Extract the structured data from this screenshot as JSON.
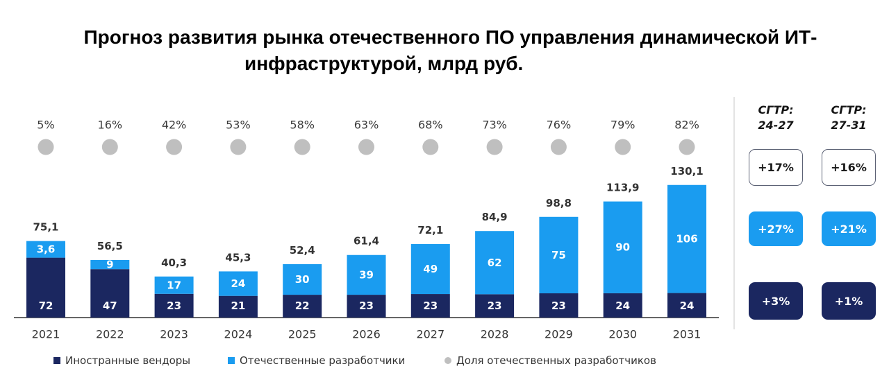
{
  "colors": {
    "foreign": "#1b2760",
    "domestic": "#1a9cf0",
    "share_dot": "#bfbfbf",
    "axis": "#333333",
    "text": "#333333"
  },
  "chart_data": {
    "type": "bar",
    "stacked": true,
    "title": "Прогноз развития рынка отечественного ПО управления динамической ИТ-инфраструктурой, млрд руб.",
    "title_lines": [
      "Прогноз развития рынка отечественного ПО управления динамической ИТ-",
      "инфраструктурой, млрд руб."
    ],
    "xlabel": "",
    "ylabel": "",
    "y_axis_visible": false,
    "grid": false,
    "categories": [
      "2021",
      "2022",
      "2023",
      "2024",
      "2025",
      "2026",
      "2027",
      "2028",
      "2029",
      "2030",
      "2031"
    ],
    "series": [
      {
        "name": "Иностранные вендоры",
        "values": [
          72,
          47,
          23,
          21,
          22,
          23,
          23,
          23,
          23,
          24,
          24
        ]
      },
      {
        "name": "Отечественные разработчики",
        "values": [
          3.6,
          9,
          17,
          24,
          30,
          39,
          49,
          62,
          75,
          90,
          106
        ]
      }
    ],
    "totals": [
      75.1,
      56.5,
      40.3,
      45.3,
      52.4,
      61.4,
      72.1,
      84.9,
      98.8,
      113.9,
      130.1
    ],
    "share_series": {
      "name": "Доля отечественных разработчиков",
      "unit": "%",
      "values": [
        5,
        16,
        42,
        53,
        58,
        63,
        68,
        73,
        76,
        79,
        82
      ]
    },
    "labels": {
      "foreign": [
        "72",
        "47",
        "23",
        "21",
        "22",
        "23",
        "23",
        "23",
        "23",
        "24",
        "24"
      ],
      "domestic": [
        "3,6",
        "9",
        "17",
        "24",
        "30",
        "39",
        "49",
        "62",
        "75",
        "90",
        "106"
      ],
      "totals": [
        "75,1",
        "56,5",
        "40,3",
        "45,3",
        "52,4",
        "61,4",
        "72,1",
        "84,9",
        "98,8",
        "113,9",
        "130,1"
      ],
      "share": [
        "5%",
        "16%",
        "42%",
        "53%",
        "58%",
        "63%",
        "68%",
        "73%",
        "76%",
        "79%",
        "82%"
      ]
    },
    "legend": {
      "placement": "bottom-left",
      "items": [
        {
          "label": "Иностранные вендоры",
          "marker": "square",
          "color_key": "foreign"
        },
        {
          "label": "Отечественные разработчики",
          "marker": "square",
          "color_key": "domestic"
        },
        {
          "label": "Доля отечественных разработчиков",
          "marker": "circle",
          "color_key": "share_dot"
        }
      ]
    },
    "cagr": [
      {
        "header_line1": "СГТР:",
        "header_line2": "24-27",
        "total": "+17%",
        "domestic": "+27%",
        "foreign": "+3%"
      },
      {
        "header_line1": "СГТР:",
        "header_line2": "27-31",
        "total": "+16%",
        "domestic": "+21%",
        "foreign": "+1%"
      }
    ]
  }
}
